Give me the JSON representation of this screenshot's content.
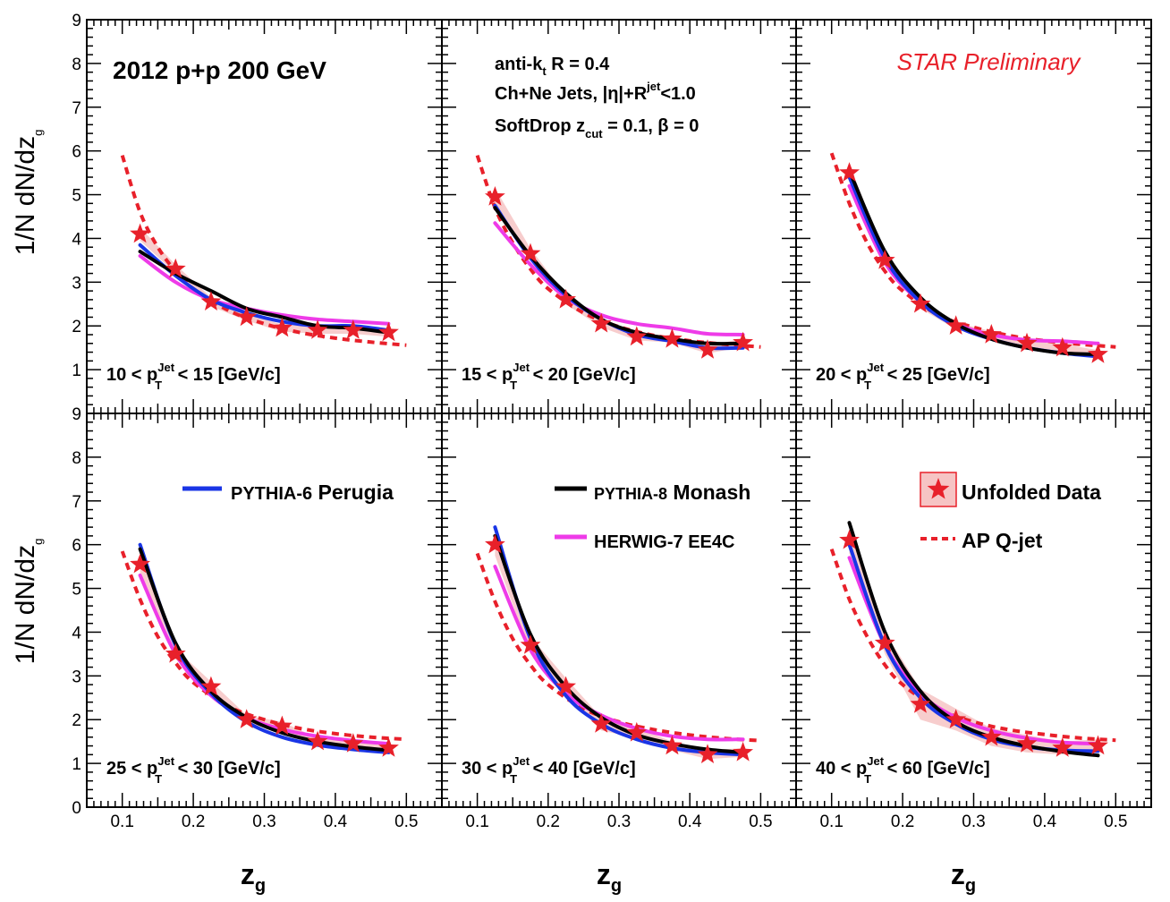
{
  "texts": {
    "ylabel_main": "1/N dN/dz",
    "ylabel_sub": "g",
    "xlabel_main": "z",
    "xlabel_sub": "g",
    "dataset": "2012 p+p 200 GeV",
    "info_line1_a": "anti-k",
    "info_line1_sub": "t",
    "info_line1_b": " R = 0.4",
    "info_line2_a": "Ch+Ne Jets, |η|+R",
    "info_line2_sup": "jet",
    "info_line2_b": "<1.0",
    "info_line3_a": "SoftDrop z",
    "info_line3_sub": "cut",
    "info_line3_b": " = 0.1,  β = 0",
    "star_preliminary": "STAR Preliminary"
  },
  "legend": {
    "pythia6_a": "PYTHIA-6",
    "pythia6_b": " Perugia",
    "pythia8_a": "PYTHIA-8",
    "pythia8_b": "  Monash",
    "herwig": "HERWIG-7 EE4C",
    "unfolded": "Unfolded Data",
    "apqjet": "AP Q-jet"
  },
  "colors": {
    "data": "#e8202a",
    "band": "#f6c4c4",
    "pythia6": "#1a35e6",
    "pythia8": "#000000",
    "herwig": "#ee3be8",
    "apqjet": "#e8202a",
    "star_text": "#e8202a"
  },
  "chart_data": {
    "type": "line",
    "xlabel": "z_g",
    "ylabel": "1/N dN/dz_g",
    "xlim": [
      0.05,
      0.55
    ],
    "ylim": [
      0,
      9
    ],
    "x_ticks": [
      "0.1",
      "0.2",
      "0.3",
      "0.4",
      "0.5"
    ],
    "y_ticks_top": [
      "1",
      "2",
      "3",
      "4",
      "5",
      "6",
      "7",
      "8",
      "9"
    ],
    "y_ticks_bottom": [
      "0",
      "1",
      "2",
      "3",
      "4",
      "5",
      "6",
      "7",
      "8",
      "9"
    ],
    "grid": false,
    "panels": [
      {
        "label_a": "10 < p",
        "label_sup": "Jet",
        "label_sub": "T",
        "label_b": " < 15 [GeV/c]",
        "data": {
          "x": [
            0.125,
            0.175,
            0.225,
            0.275,
            0.325,
            0.375,
            0.425,
            0.475
          ],
          "y": [
            4.1,
            3.3,
            2.55,
            2.2,
            1.95,
            1.9,
            1.9,
            1.85
          ],
          "band": [
            0.15,
            0.1,
            0.1,
            0.08,
            0.08,
            0.08,
            0.08,
            0.1
          ]
        },
        "pythia6": {
          "x": [
            0.125,
            0.175,
            0.225,
            0.275,
            0.325,
            0.375,
            0.425,
            0.475
          ],
          "y": [
            3.85,
            3.15,
            2.6,
            2.3,
            2.1,
            2.0,
            2.0,
            1.9
          ]
        },
        "pythia8": {
          "x": [
            0.125,
            0.175,
            0.225,
            0.275,
            0.325,
            0.375,
            0.425,
            0.475
          ],
          "y": [
            3.7,
            3.2,
            2.8,
            2.4,
            2.2,
            2.0,
            1.95,
            1.85
          ]
        },
        "herwig": {
          "x": [
            0.125,
            0.175,
            0.225,
            0.275,
            0.325,
            0.375,
            0.425,
            0.475
          ],
          "y": [
            3.6,
            3.0,
            2.6,
            2.4,
            2.25,
            2.15,
            2.1,
            2.05
          ]
        },
        "apqjet": {
          "x": [
            0.1,
            0.125,
            0.15,
            0.175,
            0.2,
            0.25,
            0.3,
            0.35,
            0.4,
            0.45,
            0.5
          ],
          "y": [
            5.9,
            4.6,
            3.8,
            3.25,
            2.85,
            2.35,
            2.05,
            1.85,
            1.72,
            1.63,
            1.56
          ]
        }
      },
      {
        "label_a": "15 < p",
        "label_sup": "Jet",
        "label_sub": "T",
        "label_b": " < 20 [GeV/c]",
        "data": {
          "x": [
            0.125,
            0.175,
            0.225,
            0.275,
            0.325,
            0.375,
            0.425,
            0.475
          ],
          "y": [
            4.95,
            3.65,
            2.6,
            2.05,
            1.75,
            1.7,
            1.45,
            1.62
          ],
          "band": [
            0.2,
            0.12,
            0.1,
            0.08,
            0.08,
            0.08,
            0.08,
            0.1
          ]
        },
        "pythia6": {
          "x": [
            0.125,
            0.175,
            0.225,
            0.275,
            0.325,
            0.375,
            0.425,
            0.475
          ],
          "y": [
            4.75,
            3.55,
            2.7,
            2.15,
            1.8,
            1.65,
            1.5,
            1.5
          ]
        },
        "pythia8": {
          "x": [
            0.125,
            0.175,
            0.225,
            0.275,
            0.325,
            0.375,
            0.425,
            0.475
          ],
          "y": [
            4.7,
            3.6,
            2.75,
            2.15,
            1.85,
            1.7,
            1.6,
            1.6
          ]
        },
        "herwig": {
          "x": [
            0.125,
            0.175,
            0.225,
            0.275,
            0.325,
            0.375,
            0.425,
            0.475
          ],
          "y": [
            4.35,
            3.4,
            2.65,
            2.25,
            2.05,
            1.95,
            1.82,
            1.8
          ]
        },
        "apqjet": {
          "x": [
            0.1,
            0.125,
            0.15,
            0.175,
            0.2,
            0.25,
            0.3,
            0.35,
            0.4,
            0.45,
            0.5
          ],
          "y": [
            5.9,
            4.7,
            3.9,
            3.3,
            2.85,
            2.3,
            1.98,
            1.78,
            1.66,
            1.58,
            1.52
          ]
        }
      },
      {
        "label_a": "20 < p",
        "label_sup": "Jet",
        "label_sub": "T",
        "label_b": " < 25 [GeV/c]",
        "data": {
          "x": [
            0.125,
            0.175,
            0.225,
            0.275,
            0.325,
            0.375,
            0.425,
            0.475
          ],
          "y": [
            5.5,
            3.5,
            2.5,
            2.0,
            1.8,
            1.6,
            1.5,
            1.35
          ],
          "band": [
            0.2,
            0.12,
            0.1,
            0.08,
            0.08,
            0.08,
            0.08,
            0.1
          ]
        },
        "pythia6": {
          "x": [
            0.125,
            0.175,
            0.225,
            0.275,
            0.325,
            0.375,
            0.425,
            0.475
          ],
          "y": [
            5.4,
            3.55,
            2.55,
            2.0,
            1.7,
            1.5,
            1.38,
            1.3
          ]
        },
        "pythia8": {
          "x": [
            0.125,
            0.175,
            0.225,
            0.275,
            0.325,
            0.375,
            0.425,
            0.475
          ],
          "y": [
            5.55,
            3.7,
            2.65,
            2.05,
            1.7,
            1.5,
            1.38,
            1.35
          ]
        },
        "herwig": {
          "x": [
            0.125,
            0.175,
            0.225,
            0.275,
            0.325,
            0.375,
            0.425,
            0.475
          ],
          "y": [
            5.2,
            3.45,
            2.55,
            2.05,
            1.8,
            1.68,
            1.65,
            1.6
          ]
        },
        "apqjet": {
          "x": [
            0.1,
            0.125,
            0.15,
            0.175,
            0.2,
            0.25,
            0.3,
            0.35,
            0.4,
            0.45,
            0.5
          ],
          "y": [
            5.95,
            4.8,
            3.9,
            3.25,
            2.8,
            2.25,
            1.97,
            1.78,
            1.66,
            1.58,
            1.52
          ]
        }
      },
      {
        "label_a": "25 < p",
        "label_sup": "Jet",
        "label_sub": "T",
        "label_b": " < 30 [GeV/c]",
        "data": {
          "x": [
            0.125,
            0.175,
            0.225,
            0.275,
            0.325,
            0.375,
            0.425,
            0.475
          ],
          "y": [
            5.55,
            3.5,
            2.75,
            2.0,
            1.85,
            1.5,
            1.45,
            1.35
          ],
          "band": [
            0.2,
            0.12,
            0.12,
            0.1,
            0.1,
            0.08,
            0.08,
            0.1
          ]
        },
        "pythia6": {
          "x": [
            0.125,
            0.175,
            0.225,
            0.275,
            0.325,
            0.375,
            0.425,
            0.475
          ],
          "y": [
            6.0,
            3.7,
            2.6,
            1.95,
            1.6,
            1.42,
            1.32,
            1.25
          ]
        },
        "pythia8": {
          "x": [
            0.125,
            0.175,
            0.225,
            0.275,
            0.325,
            0.375,
            0.425,
            0.475
          ],
          "y": [
            5.9,
            3.75,
            2.65,
            2.05,
            1.7,
            1.5,
            1.38,
            1.3
          ]
        },
        "herwig": {
          "x": [
            0.125,
            0.175,
            0.225,
            0.275,
            0.325,
            0.375,
            0.425,
            0.475
          ],
          "y": [
            5.3,
            3.5,
            2.55,
            2.05,
            1.78,
            1.62,
            1.52,
            1.45
          ]
        },
        "apqjet": {
          "x": [
            0.1,
            0.125,
            0.15,
            0.175,
            0.2,
            0.25,
            0.3,
            0.35,
            0.4,
            0.45,
            0.5
          ],
          "y": [
            5.85,
            4.75,
            3.9,
            3.3,
            2.85,
            2.3,
            2.0,
            1.8,
            1.68,
            1.6,
            1.55
          ]
        }
      },
      {
        "label_a": "30 < p",
        "label_sup": "Jet",
        "label_sub": "T",
        "label_b": " < 40 [GeV/c]",
        "data": {
          "x": [
            0.125,
            0.175,
            0.225,
            0.275,
            0.325,
            0.375,
            0.425,
            0.475
          ],
          "y": [
            6.0,
            3.7,
            2.75,
            1.9,
            1.7,
            1.4,
            1.2,
            1.25
          ],
          "band": [
            0.25,
            0.2,
            0.2,
            0.15,
            0.12,
            0.1,
            0.1,
            0.1
          ]
        },
        "pythia6": {
          "x": [
            0.125,
            0.175,
            0.225,
            0.275,
            0.325,
            0.375,
            0.425,
            0.475
          ],
          "y": [
            6.4,
            3.85,
            2.55,
            1.9,
            1.55,
            1.35,
            1.25,
            1.2
          ]
        },
        "pythia8": {
          "x": [
            0.125,
            0.175,
            0.225,
            0.275,
            0.325,
            0.375,
            0.425,
            0.475
          ],
          "y": [
            6.2,
            3.95,
            2.75,
            2.05,
            1.65,
            1.45,
            1.32,
            1.25
          ]
        },
        "herwig": {
          "x": [
            0.125,
            0.175,
            0.225,
            0.275,
            0.325,
            0.375,
            0.425,
            0.475
          ],
          "y": [
            5.5,
            3.6,
            2.6,
            2.1,
            1.8,
            1.62,
            1.55,
            1.55
          ]
        },
        "apqjet": {
          "x": [
            0.1,
            0.125,
            0.15,
            0.175,
            0.2,
            0.25,
            0.3,
            0.35,
            0.4,
            0.45,
            0.5
          ],
          "y": [
            5.8,
            4.7,
            3.85,
            3.25,
            2.8,
            2.25,
            1.95,
            1.77,
            1.65,
            1.57,
            1.52
          ]
        }
      },
      {
        "label_a": "40 < p",
        "label_sup": "Jet",
        "label_sub": "T",
        "label_b": " < 60 [GeV/c]",
        "data": {
          "x": [
            0.125,
            0.175,
            0.225,
            0.275,
            0.325,
            0.375,
            0.425,
            0.475
          ],
          "y": [
            6.1,
            3.75,
            2.35,
            2.0,
            1.6,
            1.45,
            1.35,
            1.4
          ],
          "band": [
            0.3,
            0.25,
            0.35,
            0.25,
            0.2,
            0.2,
            0.15,
            0.15
          ]
        },
        "pythia6": {
          "x": [
            0.125,
            0.175,
            0.225,
            0.275,
            0.325,
            0.375,
            0.425,
            0.475
          ],
          "y": [
            6.0,
            3.7,
            2.5,
            1.9,
            1.55,
            1.38,
            1.3,
            1.28
          ]
        },
        "pythia8": {
          "x": [
            0.125,
            0.175,
            0.225,
            0.275,
            0.325,
            0.375,
            0.425,
            0.475
          ],
          "y": [
            6.5,
            4.0,
            2.65,
            1.95,
            1.6,
            1.4,
            1.27,
            1.18
          ]
        },
        "herwig": {
          "x": [
            0.125,
            0.175,
            0.225,
            0.275,
            0.325,
            0.375,
            0.425,
            0.475
          ],
          "y": [
            5.7,
            3.7,
            2.6,
            2.05,
            1.75,
            1.58,
            1.48,
            1.45
          ]
        },
        "apqjet": {
          "x": [
            0.1,
            0.125,
            0.15,
            0.175,
            0.2,
            0.25,
            0.3,
            0.35,
            0.4,
            0.45,
            0.5
          ],
          "y": [
            5.9,
            4.75,
            3.9,
            3.25,
            2.8,
            2.25,
            1.95,
            1.77,
            1.66,
            1.58,
            1.53
          ]
        }
      }
    ]
  }
}
